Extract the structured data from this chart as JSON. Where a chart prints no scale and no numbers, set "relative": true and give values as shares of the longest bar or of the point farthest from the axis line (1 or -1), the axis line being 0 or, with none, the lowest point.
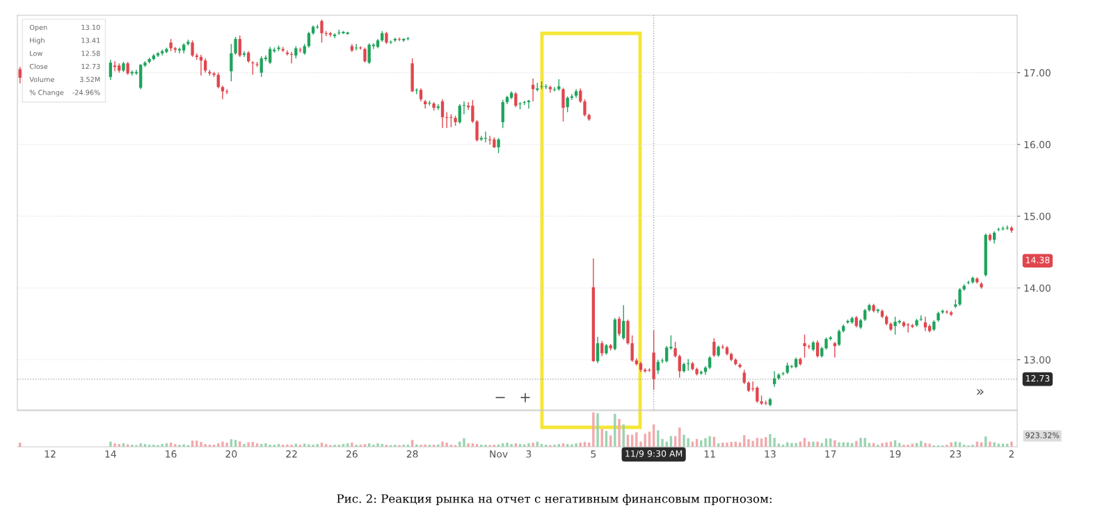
{
  "chart_data": [
    {
      "type": "candlestick",
      "tick_labels": "y",
      "grid": "y",
      "categories": [
        null,
        null,
        null,
        null,
        null,
        null,
        null,
        "12",
        null,
        null,
        null,
        null,
        null,
        null,
        null,
        null,
        null,
        null,
        null,
        null,
        null,
        "14",
        null,
        null,
        null,
        null,
        null,
        null,
        null,
        null,
        null,
        null,
        null,
        null,
        null,
        "16",
        null,
        null,
        null,
        null,
        null,
        null,
        null,
        null,
        null,
        null,
        null,
        null,
        null,
        "20",
        null,
        null,
        null,
        null,
        null,
        null,
        null,
        null,
        null,
        null,
        null,
        null,
        null,
        "22",
        null,
        null,
        null,
        null,
        null,
        null,
        null,
        null,
        null,
        null,
        null,
        null,
        null,
        "26",
        null,
        null,
        null,
        null,
        null,
        null,
        null,
        null,
        null,
        null,
        null,
        null,
        null,
        "28",
        null,
        null,
        null,
        null,
        null,
        null,
        null,
        null,
        null,
        null,
        null,
        null,
        null,
        null,
        null,
        null,
        null,
        null,
        null,
        "Nov",
        null,
        null,
        null,
        null,
        null,
        null,
        "3",
        null,
        null,
        null,
        null,
        null,
        null,
        null,
        null,
        null,
        null,
        null,
        null,
        null,
        null,
        "5",
        null,
        null,
        null,
        null,
        null,
        null,
        null,
        null,
        null,
        null,
        null,
        null,
        null,
        "11/9 9:30 AM",
        null,
        null,
        null,
        null,
        null,
        null,
        null,
        null,
        null,
        null,
        null,
        null,
        "11",
        null,
        null,
        null,
        null,
        null,
        null,
        null,
        null,
        null,
        null,
        null,
        null,
        null,
        "13",
        null,
        null,
        null,
        null,
        null,
        null,
        null,
        null,
        null,
        null,
        null,
        null,
        null,
        "17",
        null,
        null,
        null,
        null,
        null,
        null,
        null,
        null,
        null,
        null,
        null,
        null,
        null,
        null,
        "19",
        null,
        null,
        null,
        null,
        null,
        null,
        null,
        null,
        null,
        null,
        null,
        null,
        null,
        "23",
        null,
        null,
        null,
        null,
        null,
        null,
        null,
        null,
        null,
        null,
        null,
        null,
        "2"
      ],
      "ohlc": [
        [
          17.05,
          17.08,
          16.85,
          16.93
        ],
        null,
        null,
        null,
        null,
        null,
        null,
        null,
        null,
        null,
        null,
        null,
        null,
        null,
        null,
        null,
        null,
        null,
        null,
        null,
        null,
        [
          16.94,
          17.18,
          16.9,
          17.14
        ],
        [
          17.1,
          17.16,
          17.02,
          17.08
        ],
        [
          17.1,
          17.13,
          17.0,
          17.03
        ],
        [
          17.03,
          17.15,
          17.01,
          17.13
        ],
        [
          17.13,
          17.15,
          16.97,
          16.99
        ],
        [
          17.0,
          17.03,
          16.96,
          17.0
        ],
        [
          16.99,
          17.04,
          16.97,
          17.01
        ],
        [
          16.79,
          17.12,
          16.77,
          17.11
        ],
        [
          17.1,
          17.16,
          17.08,
          17.14
        ],
        [
          17.15,
          17.21,
          17.13,
          17.19
        ],
        [
          17.19,
          17.26,
          17.17,
          17.24
        ],
        [
          17.24,
          17.29,
          17.22,
          17.27
        ],
        [
          17.27,
          17.32,
          17.24,
          17.3
        ],
        [
          17.29,
          17.35,
          17.27,
          17.33
        ],
        [
          17.42,
          17.47,
          17.3,
          17.34
        ],
        [
          17.34,
          17.36,
          17.28,
          17.32
        ],
        [
          17.31,
          17.35,
          17.27,
          17.33
        ],
        [
          17.31,
          17.41,
          17.27,
          17.39
        ],
        [
          17.4,
          17.46,
          17.38,
          17.43
        ],
        [
          17.42,
          17.45,
          17.22,
          17.24
        ],
        [
          17.24,
          17.27,
          17.18,
          17.22
        ],
        [
          17.22,
          17.25,
          16.96,
          17.17
        ],
        [
          17.17,
          17.2,
          17.0,
          17.03
        ],
        [
          17.01,
          17.04,
          16.96,
          16.99
        ],
        [
          16.99,
          17.01,
          16.94,
          16.97
        ],
        [
          16.97,
          17.0,
          16.78,
          16.8
        ],
        [
          16.8,
          16.82,
          16.63,
          16.74
        ],
        [
          16.74,
          16.77,
          16.7,
          16.73
        ],
        [
          17.02,
          17.4,
          16.88,
          17.27
        ],
        [
          17.27,
          17.5,
          17.25,
          17.47
        ],
        [
          17.47,
          17.52,
          17.22,
          17.24
        ],
        [
          17.25,
          17.3,
          17.22,
          17.27
        ],
        [
          17.28,
          17.3,
          17.14,
          17.16
        ],
        [
          17.14,
          17.16,
          16.97,
          17.13
        ],
        [
          17.12,
          17.15,
          17.08,
          17.11
        ],
        [
          17.0,
          17.23,
          16.94,
          17.2
        ],
        [
          17.19,
          17.24,
          17.16,
          17.21
        ],
        [
          17.14,
          17.36,
          17.12,
          17.33
        ],
        [
          17.3,
          17.35,
          17.28,
          17.32
        ],
        [
          17.33,
          17.38,
          17.3,
          17.35
        ],
        [
          17.33,
          17.36,
          17.29,
          17.31
        ],
        [
          17.28,
          17.31,
          17.24,
          17.26
        ],
        [
          17.26,
          17.29,
          17.13,
          17.25
        ],
        [
          17.24,
          17.37,
          17.2,
          17.34
        ],
        [
          17.32,
          17.35,
          17.28,
          17.31
        ],
        [
          17.27,
          17.4,
          17.25,
          17.37
        ],
        [
          17.37,
          17.57,
          17.35,
          17.55
        ],
        [
          17.55,
          17.66,
          17.53,
          17.64
        ],
        [
          17.63,
          17.67,
          17.61,
          17.64
        ],
        [
          17.72,
          17.74,
          17.42,
          17.55
        ],
        [
          17.55,
          17.58,
          17.51,
          17.54
        ],
        [
          17.55,
          17.57,
          17.5,
          17.53
        ],
        [
          17.51,
          17.55,
          17.48,
          17.53
        ],
        [
          17.55,
          17.6,
          17.53,
          17.56
        ],
        [
          17.56,
          17.58,
          17.54,
          17.56
        ],
        [
          17.55,
          17.57,
          17.53,
          17.55
        ],
        [
          17.37,
          17.4,
          17.29,
          17.31
        ],
        [
          17.34,
          17.4,
          17.31,
          17.35
        ],
        [
          17.35,
          17.37,
          17.32,
          17.34
        ],
        [
          17.33,
          17.35,
          17.14,
          17.16
        ],
        [
          17.14,
          17.41,
          17.12,
          17.39
        ],
        [
          17.37,
          17.41,
          17.33,
          17.39
        ],
        [
          17.36,
          17.47,
          17.34,
          17.45
        ],
        [
          17.45,
          17.58,
          17.43,
          17.55
        ],
        [
          17.55,
          17.57,
          17.4,
          17.42
        ],
        [
          17.42,
          17.45,
          17.4,
          17.43
        ],
        [
          17.45,
          17.49,
          17.43,
          17.47
        ],
        [
          17.47,
          17.49,
          17.44,
          17.46
        ],
        [
          17.46,
          17.48,
          17.43,
          17.46
        ],
        [
          17.47,
          17.5,
          17.45,
          17.48
        ],
        [
          17.13,
          17.2,
          16.73,
          16.74
        ],
        [
          16.75,
          16.78,
          16.7,
          16.76
        ],
        [
          16.76,
          16.78,
          16.6,
          16.63
        ],
        [
          16.6,
          16.62,
          16.5,
          16.56
        ],
        [
          16.57,
          16.61,
          16.54,
          16.58
        ],
        [
          16.57,
          16.59,
          16.47,
          16.51
        ],
        [
          16.52,
          16.56,
          16.48,
          16.52
        ],
        [
          16.6,
          16.63,
          16.23,
          16.38
        ],
        [
          16.38,
          16.45,
          16.23,
          16.37
        ],
        [
          16.38,
          16.42,
          16.24,
          16.37
        ],
        [
          16.37,
          16.4,
          16.26,
          16.31
        ],
        [
          16.31,
          16.56,
          16.29,
          16.54
        ],
        [
          16.54,
          16.6,
          16.42,
          16.55
        ],
        [
          16.54,
          16.59,
          16.48,
          16.52
        ],
        [
          16.54,
          16.62,
          16.3,
          16.32
        ],
        [
          16.32,
          16.34,
          16.04,
          16.06
        ],
        [
          16.08,
          16.12,
          16.05,
          16.08
        ],
        [
          16.08,
          16.18,
          16.03,
          16.09
        ],
        [
          16.07,
          16.12,
          16.0,
          16.06
        ],
        [
          16.07,
          16.1,
          15.95,
          15.96
        ],
        [
          15.96,
          16.09,
          15.88,
          16.07
        ],
        [
          16.31,
          16.62,
          16.23,
          16.59
        ],
        [
          16.59,
          16.68,
          16.56,
          16.66
        ],
        [
          16.65,
          16.74,
          16.63,
          16.72
        ],
        [
          16.71,
          16.73,
          16.52,
          16.54
        ],
        [
          16.56,
          16.59,
          16.49,
          16.57
        ],
        [
          16.58,
          16.61,
          16.55,
          16.59
        ],
        [
          16.6,
          16.62,
          16.5,
          16.6
        ],
        [
          16.83,
          16.92,
          16.6,
          16.77
        ],
        [
          16.77,
          16.86,
          16.74,
          16.77
        ],
        [
          16.8,
          16.88,
          16.77,
          16.81
        ],
        [
          16.8,
          16.84,
          16.77,
          16.81
        ],
        [
          16.8,
          16.82,
          16.72,
          16.77
        ],
        [
          16.76,
          16.8,
          16.74,
          16.77
        ],
        [
          16.77,
          16.91,
          16.75,
          16.81
        ],
        [
          16.77,
          16.79,
          16.32,
          16.51
        ],
        [
          16.52,
          16.67,
          16.45,
          16.65
        ],
        [
          16.65,
          16.7,
          16.62,
          16.67
        ],
        [
          16.68,
          16.77,
          16.65,
          16.74
        ],
        [
          16.75,
          16.78,
          16.58,
          16.6
        ],
        [
          16.6,
          16.63,
          16.39,
          16.41
        ],
        [
          16.41,
          16.43,
          16.33,
          16.35
        ],
        [
          14.01,
          14.41,
          12.97,
          12.98
        ],
        [
          12.98,
          13.32,
          12.95,
          13.23
        ],
        [
          13.23,
          13.26,
          13.05,
          13.09
        ],
        [
          13.09,
          13.22,
          13.07,
          13.2
        ],
        [
          13.2,
          13.22,
          13.13,
          13.16
        ],
        [
          13.15,
          13.58,
          13.13,
          13.56
        ],
        [
          13.57,
          13.6,
          13.33,
          13.36
        ],
        [
          13.3,
          13.76,
          13.28,
          13.54
        ],
        [
          13.54,
          13.56,
          13.21,
          13.23
        ],
        [
          13.23,
          13.34,
          12.97,
          12.99
        ],
        [
          12.99,
          13.02,
          12.92,
          12.94
        ],
        [
          12.95,
          12.97,
          12.83,
          12.86
        ],
        [
          12.86,
          12.88,
          12.82,
          12.84
        ],
        [
          12.86,
          12.88,
          12.83,
          12.85
        ],
        [
          13.1,
          13.41,
          12.58,
          12.73
        ],
        [
          12.85,
          13.0,
          12.8,
          12.97
        ],
        [
          12.98,
          13.02,
          12.95,
          12.99
        ],
        [
          12.98,
          13.19,
          12.96,
          13.17
        ],
        [
          13.17,
          13.34,
          13.14,
          13.17
        ],
        [
          13.16,
          13.25,
          13.03,
          13.05
        ],
        [
          13.05,
          13.07,
          12.75,
          12.84
        ],
        [
          12.84,
          12.96,
          12.82,
          12.94
        ],
        [
          12.94,
          13.01,
          12.85,
          12.95
        ],
        [
          12.95,
          12.97,
          12.85,
          12.87
        ],
        [
          12.87,
          12.89,
          12.78,
          12.8
        ],
        [
          12.81,
          12.85,
          12.79,
          12.83
        ],
        [
          12.83,
          12.91,
          12.79,
          12.89
        ],
        [
          12.89,
          13.05,
          12.87,
          13.03
        ],
        [
          13.25,
          13.3,
          13.04,
          13.06
        ],
        [
          13.06,
          13.2,
          13.04,
          13.18
        ],
        [
          13.18,
          13.21,
          13.15,
          13.17
        ],
        [
          13.17,
          13.19,
          13.06,
          13.08
        ],
        [
          13.08,
          13.1,
          12.98,
          13.0
        ],
        [
          13.0,
          13.02,
          12.92,
          12.94
        ],
        [
          12.93,
          12.95,
          12.88,
          12.9
        ],
        [
          12.82,
          12.86,
          12.66,
          12.68
        ],
        [
          12.68,
          12.7,
          12.55,
          12.57
        ],
        [
          12.6,
          12.7,
          12.56,
          12.59
        ],
        [
          12.61,
          12.63,
          12.4,
          12.42
        ],
        [
          12.42,
          12.5,
          12.37,
          12.39
        ],
        [
          12.4,
          12.43,
          12.37,
          12.39
        ],
        [
          12.37,
          12.47,
          12.35,
          12.45
        ],
        [
          12.66,
          12.84,
          12.62,
          12.74
        ],
        [
          12.74,
          12.81,
          12.72,
          12.79
        ],
        [
          12.8,
          12.83,
          12.78,
          12.81
        ],
        [
          12.82,
          12.96,
          12.8,
          12.92
        ],
        [
          12.9,
          12.93,
          12.88,
          12.91
        ],
        [
          12.9,
          13.03,
          12.88,
          13.01
        ],
        [
          13.01,
          13.03,
          12.92,
          12.94
        ],
        [
          13.23,
          13.35,
          13.03,
          13.19
        ],
        [
          13.19,
          13.21,
          13.15,
          13.18
        ],
        [
          13.14,
          13.26,
          13.12,
          13.24
        ],
        [
          13.24,
          13.27,
          13.03,
          13.05
        ],
        [
          13.05,
          13.18,
          13.03,
          13.16
        ],
        [
          13.16,
          13.31,
          13.14,
          13.29
        ],
        [
          13.29,
          13.33,
          13.27,
          13.31
        ],
        [
          13.23,
          13.25,
          13.03,
          13.19
        ],
        [
          13.21,
          13.42,
          13.19,
          13.4
        ],
        [
          13.4,
          13.49,
          13.38,
          13.47
        ],
        [
          13.52,
          13.56,
          13.5,
          13.54
        ],
        [
          13.52,
          13.6,
          13.5,
          13.58
        ],
        [
          13.59,
          13.61,
          13.45,
          13.47
        ],
        [
          13.45,
          13.57,
          13.43,
          13.55
        ],
        [
          13.56,
          13.71,
          13.54,
          13.69
        ],
        [
          13.69,
          13.78,
          13.67,
          13.76
        ],
        [
          13.76,
          13.78,
          13.66,
          13.68
        ],
        [
          13.69,
          13.71,
          13.65,
          13.69
        ],
        [
          13.68,
          13.7,
          13.58,
          13.6
        ],
        [
          13.6,
          13.62,
          13.48,
          13.5
        ],
        [
          13.5,
          13.52,
          13.4,
          13.42
        ],
        [
          13.47,
          13.6,
          13.35,
          13.53
        ],
        [
          13.53,
          13.56,
          13.5,
          13.53
        ],
        [
          13.52,
          13.54,
          13.45,
          13.47
        ],
        [
          13.49,
          13.51,
          13.38,
          13.48
        ],
        [
          13.48,
          13.5,
          13.44,
          13.46
        ],
        [
          13.48,
          13.57,
          13.46,
          13.55
        ],
        [
          13.56,
          13.62,
          13.54,
          13.57
        ],
        [
          13.52,
          13.6,
          13.4,
          13.45
        ],
        [
          13.47,
          13.49,
          13.38,
          13.4
        ],
        [
          13.42,
          13.55,
          13.4,
          13.53
        ],
        [
          13.55,
          13.67,
          13.53,
          13.65
        ],
        [
          13.66,
          13.7,
          13.64,
          13.68
        ],
        [
          13.67,
          13.69,
          13.64,
          13.66
        ],
        [
          13.66,
          13.68,
          13.61,
          13.63
        ],
        [
          13.74,
          13.84,
          13.72,
          13.77
        ],
        [
          13.77,
          14.0,
          13.75,
          13.98
        ],
        [
          13.98,
          14.05,
          13.96,
          14.03
        ],
        [
          14.07,
          14.1,
          14.05,
          14.08
        ],
        [
          14.08,
          14.16,
          14.06,
          14.14
        ],
        [
          14.13,
          14.15,
          14.06,
          14.08
        ],
        [
          14.06,
          14.08,
          13.99,
          14.01
        ],
        [
          14.18,
          14.76,
          14.16,
          14.74
        ],
        [
          14.74,
          14.76,
          14.65,
          14.67
        ],
        [
          14.67,
          14.79,
          14.62,
          14.77
        ],
        [
          14.81,
          14.84,
          14.79,
          14.82
        ],
        [
          14.82,
          14.86,
          14.8,
          14.83
        ],
        [
          14.83,
          14.87,
          14.81,
          14.84
        ],
        [
          14.84,
          14.86,
          14.77,
          14.8
        ]
      ],
      "ylim": [
        12.3,
        17.8
      ],
      "yticks": [
        {
          "value": 13,
          "label": "13.00"
        },
        {
          "value": 14,
          "label": "14.00"
        },
        {
          "value": 15,
          "label": "15.00"
        },
        {
          "value": 16,
          "label": "16.00"
        },
        {
          "value": 17,
          "label": "17.00"
        }
      ],
      "ref_lines": [
        {
          "axis": "y",
          "value": 12.73,
          "label": "12.73",
          "color": "#a0a0a0",
          "line_style": "dotted"
        },
        {
          "axis": "x",
          "value": "11/9 9:30 AM",
          "color": "#a0a0a0",
          "line_style": "dotted"
        }
      ],
      "annotations": [
        "Open",
        "13.10",
        "High",
        "13.41",
        "Low",
        "12.58",
        "Close",
        "12.73",
        "Volume",
        "3.52M",
        "% Change",
        "-24.96%",
        "−",
        "+",
        "»",
        "14.38"
      ]
    },
    {
      "type": "bar",
      "relative": true,
      "tick_labels": "x",
      "categories": [
        null,
        null,
        null,
        null,
        null,
        null,
        null,
        "12",
        null,
        null,
        null,
        null,
        null,
        null,
        null,
        null,
        null,
        null,
        null,
        null,
        null,
        "14",
        null,
        null,
        null,
        null,
        null,
        null,
        null,
        null,
        null,
        null,
        null,
        null,
        null,
        "16",
        null,
        null,
        null,
        null,
        null,
        null,
        null,
        null,
        null,
        null,
        null,
        null,
        null,
        "20",
        null,
        null,
        null,
        null,
        null,
        null,
        null,
        null,
        null,
        null,
        null,
        null,
        null,
        "22",
        null,
        null,
        null,
        null,
        null,
        null,
        null,
        null,
        null,
        null,
        null,
        null,
        null,
        "26",
        null,
        null,
        null,
        null,
        null,
        null,
        null,
        null,
        null,
        null,
        null,
        null,
        null,
        "28",
        null,
        null,
        null,
        null,
        null,
        null,
        null,
        null,
        null,
        null,
        null,
        null,
        null,
        null,
        null,
        null,
        null,
        null,
        null,
        "Nov",
        null,
        null,
        null,
        null,
        null,
        null,
        "3",
        null,
        null,
        null,
        null,
        null,
        null,
        null,
        null,
        null,
        null,
        null,
        null,
        null,
        null,
        "5",
        null,
        null,
        null,
        null,
        null,
        null,
        null,
        null,
        null,
        null,
        null,
        null,
        null,
        "11/9 9:30 AM",
        null,
        null,
        null,
        null,
        null,
        null,
        null,
        null,
        null,
        null,
        null,
        null,
        "11",
        null,
        null,
        null,
        null,
        null,
        null,
        null,
        null,
        null,
        null,
        null,
        null,
        null,
        "13",
        null,
        null,
        null,
        null,
        null,
        null,
        null,
        null,
        null,
        null,
        null,
        null,
        null,
        "17",
        null,
        null,
        null,
        null,
        null,
        null,
        null,
        null,
        null,
        null,
        null,
        null,
        null,
        null,
        "19",
        null,
        null,
        null,
        null,
        null,
        null,
        null,
        null,
        null,
        null,
        null,
        null,
        null,
        "23",
        null,
        null,
        null,
        null,
        null,
        null,
        null,
        null,
        null,
        null,
        null,
        null,
        "2"
      ],
      "values": [
        0.12,
        null,
        null,
        null,
        null,
        null,
        null,
        null,
        null,
        null,
        null,
        null,
        null,
        null,
        null,
        null,
        null,
        null,
        null,
        null,
        null,
        0.15,
        0.1,
        0.08,
        0.1,
        0.07,
        0.06,
        0.05,
        0.1,
        0.08,
        0.06,
        0.06,
        0.05,
        0.08,
        0.1,
        0.12,
        0.08,
        0.06,
        0.07,
        0.05,
        0.18,
        0.18,
        0.14,
        0.08,
        0.06,
        0.06,
        0.1,
        0.15,
        0.12,
        0.22,
        0.2,
        0.16,
        0.08,
        0.13,
        0.14,
        0.1,
        0.08,
        0.1,
        0.06,
        0.06,
        0.08,
        0.06,
        0.07,
        0.06,
        0.09,
        0.06,
        0.09,
        0.07,
        0.06,
        0.08,
        0.12,
        0.08,
        0.05,
        0.06,
        0.06,
        0.08,
        0.1,
        0.12,
        0.06,
        0.06,
        0.08,
        0.1,
        0.06,
        0.1,
        0.08,
        0.06,
        0.05,
        0.06,
        0.05,
        0.06,
        0.06,
        0.2,
        0.07,
        0.06,
        0.07,
        0.06,
        0.06,
        0.07,
        0.15,
        0.12,
        0.06,
        0.05,
        0.15,
        0.25,
        0.1,
        0.1,
        0.08,
        0.06,
        0.06,
        0.05,
        0.06,
        0.07,
        0.1,
        0.12,
        0.08,
        0.1,
        0.08,
        0.07,
        0.1,
        0.12,
        0.15,
        0.08,
        0.06,
        0.05,
        0.06,
        0.08,
        0.1,
        0.08,
        0.07,
        0.1,
        0.12,
        0.14,
        0.12,
        1.0,
        0.98,
        0.52,
        0.46,
        0.33,
        0.96,
        0.81,
        0.65,
        0.35,
        0.35,
        0.42,
        0.15,
        0.38,
        0.44,
        0.65,
        0.48,
        0.23,
        0.15,
        0.31,
        0.31,
        0.56,
        0.35,
        0.25,
        0.15,
        0.23,
        0.19,
        0.25,
        0.31,
        0.29,
        0.1,
        0.12,
        0.12,
        0.14,
        0.15,
        0.13,
        0.34,
        0.22,
        0.17,
        0.26,
        0.24,
        0.28,
        0.37,
        0.26,
        0.09,
        0.06,
        0.13,
        0.11,
        0.11,
        0.15,
        0.26,
        0.15,
        0.15,
        0.15,
        0.11,
        0.24,
        0.24,
        0.19,
        0.13,
        0.13,
        0.13,
        0.11,
        0.17,
        0.26,
        0.26,
        0.11,
        0.11,
        0.06,
        0.11,
        0.13,
        0.15,
        0.19,
        0.11,
        0.06,
        0.06,
        0.09,
        0.11,
        0.17,
        0.11,
        0.09,
        0.04,
        0.04,
        0.04,
        0.06,
        0.13,
        0.15,
        0.13,
        0.06,
        0.04,
        0.06,
        0.15,
        0.13,
        0.3,
        0.15,
        0.13,
        0.09,
        0.09,
        0.09,
        0.15
      ],
      "colors": [
        "#f2a9ac",
        null,
        null,
        null,
        null,
        null,
        null,
        null,
        null,
        null,
        null,
        null,
        null,
        null,
        null,
        null,
        null,
        null,
        null,
        null,
        null,
        "#9ad4b0",
        "#f2a9ac",
        "#f2a9ac",
        "#9ad4b0",
        "#f2a9ac",
        "#9ad4b0",
        "#9ad4b0",
        "#9ad4b0",
        "#9ad4b0",
        "#9ad4b0",
        "#9ad4b0",
        "#9ad4b0",
        "#9ad4b0",
        "#9ad4b0",
        "#f2a9ac",
        "#f2a9ac",
        "#9ad4b0",
        "#9ad4b0",
        "#9ad4b0",
        "#f2a9ac",
        "#f2a9ac",
        "#f2a9ac",
        "#f2a9ac",
        "#f2a9ac",
        "#f2a9ac",
        "#f2a9ac",
        "#f2a9ac",
        "#f2a9ac",
        "#9ad4b0",
        "#9ad4b0",
        "#f2a9ac",
        "#9ad4b0",
        "#f2a9ac",
        "#f2a9ac",
        "#f2a9ac",
        "#9ad4b0",
        "#9ad4b0",
        "#9ad4b0",
        "#9ad4b0",
        "#9ad4b0",
        "#f2a9ac",
        "#f2a9ac",
        "#f2a9ac",
        "#9ad4b0",
        "#f2a9ac",
        "#9ad4b0",
        "#9ad4b0",
        "#9ad4b0",
        "#9ad4b0",
        "#f2a9ac",
        "#f2a9ac",
        "#f2a9ac",
        "#9ad4b0",
        "#9ad4b0",
        "#9ad4b0",
        "#9ad4b0",
        "#f2a9ac",
        "#9ad4b0",
        "#f2a9ac",
        "#f2a9ac",
        "#9ad4b0",
        "#9ad4b0",
        "#9ad4b0",
        "#9ad4b0",
        "#f2a9ac",
        "#9ad4b0",
        "#9ad4b0",
        "#f2a9ac",
        "#9ad4b0",
        "#9ad4b0",
        "#f2a9ac",
        "#9ad4b0",
        "#f2a9ac",
        "#f2a9ac",
        "#9ad4b0",
        "#f2a9ac",
        "#9ad4b0",
        "#f2a9ac",
        "#f2a9ac",
        "#f2a9ac",
        "#f2a9ac",
        "#9ad4b0",
        "#9ad4b0",
        "#f2a9ac",
        "#f2a9ac",
        "#f2a9ac",
        "#9ad4b0",
        "#9ad4b0",
        "#f2a9ac",
        "#f2a9ac",
        "#9ad4b0",
        "#9ad4b0",
        "#9ad4b0",
        "#9ad4b0",
        "#f2a9ac",
        "#9ad4b0",
        "#9ad4b0",
        "#9ad4b0",
        "#f2a9ac",
        "#9ad4b0",
        "#9ad4b0",
        "#9ad4b0",
        "#f2a9ac",
        "#9ad4b0",
        "#9ad4b0",
        "#f2a9ac",
        "#9ad4b0",
        "#9ad4b0",
        "#9ad4b0",
        "#f2a9ac",
        "#f2a9ac",
        "#f2a9ac",
        "#f2a9ac",
        "#9ad4b0",
        "#f2a9ac",
        "#9ad4b0",
        "#f2a9ac",
        "#9ad4b0",
        "#f2a9ac",
        "#9ad4b0",
        "#f2a9ac",
        "#f2a9ac",
        "#f2a9ac",
        "#f2a9ac",
        "#f2a9ac",
        "#f2a9ac",
        "#f2a9ac",
        "#9ad4b0",
        "#9ad4b0",
        "#9ad4b0",
        "#9ad4b0",
        "#f2a9ac",
        "#f2a9ac",
        "#9ad4b0",
        "#9ad4b0",
        "#f2a9ac",
        "#f2a9ac",
        "#9ad4b0",
        "#9ad4b0",
        "#9ad4b0",
        "#f2a9ac",
        "#9ad4b0",
        "#f2a9ac",
        "#f2a9ac",
        "#f2a9ac",
        "#f2a9ac",
        "#f2a9ac",
        "#f2a9ac",
        "#f2a9ac",
        "#f2a9ac",
        "#f2a9ac",
        "#f2a9ac",
        "#f2a9ac",
        "#9ad4b0",
        "#9ad4b0",
        "#9ad4b0",
        "#9ad4b0",
        "#9ad4b0",
        "#9ad4b0",
        "#9ad4b0",
        "#f2a9ac",
        "#f2a9ac",
        "#f2a9ac",
        "#9ad4b0",
        "#f2a9ac",
        "#9ad4b0",
        "#9ad4b0",
        "#9ad4b0",
        "#f2a9ac",
        "#9ad4b0",
        "#9ad4b0",
        "#9ad4b0",
        "#9ad4b0",
        "#f2a9ac",
        "#9ad4b0",
        "#9ad4b0",
        "#9ad4b0",
        "#f2a9ac",
        "#9ad4b0",
        "#f2a9ac",
        "#f2a9ac",
        "#f2a9ac",
        "#9ad4b0",
        "#9ad4b0",
        "#f2a9ac",
        "#f2a9ac",
        "#f2a9ac",
        "#9ad4b0",
        "#9ad4b0",
        "#f2a9ac",
        "#f2a9ac",
        "#9ad4b0",
        "#9ad4b0",
        "#9ad4b0",
        "#f2a9ac",
        "#f2a9ac",
        "#9ad4b0",
        "#9ad4b0",
        "#9ad4b0",
        "#9ad4b0",
        "#9ad4b0",
        "#f2a9ac",
        "#f2a9ac",
        "#9ad4b0",
        "#f2a9ac",
        "#9ad4b0",
        "#9ad4b0",
        "#9ad4b0",
        "#9ad4b0",
        "#f2a9ac"
      ],
      "annotations": [
        "923.32%",
        "Рис. 2: Реакция рынка на отчет с негативным финансовым прогнозом:"
      ]
    }
  ]
}
